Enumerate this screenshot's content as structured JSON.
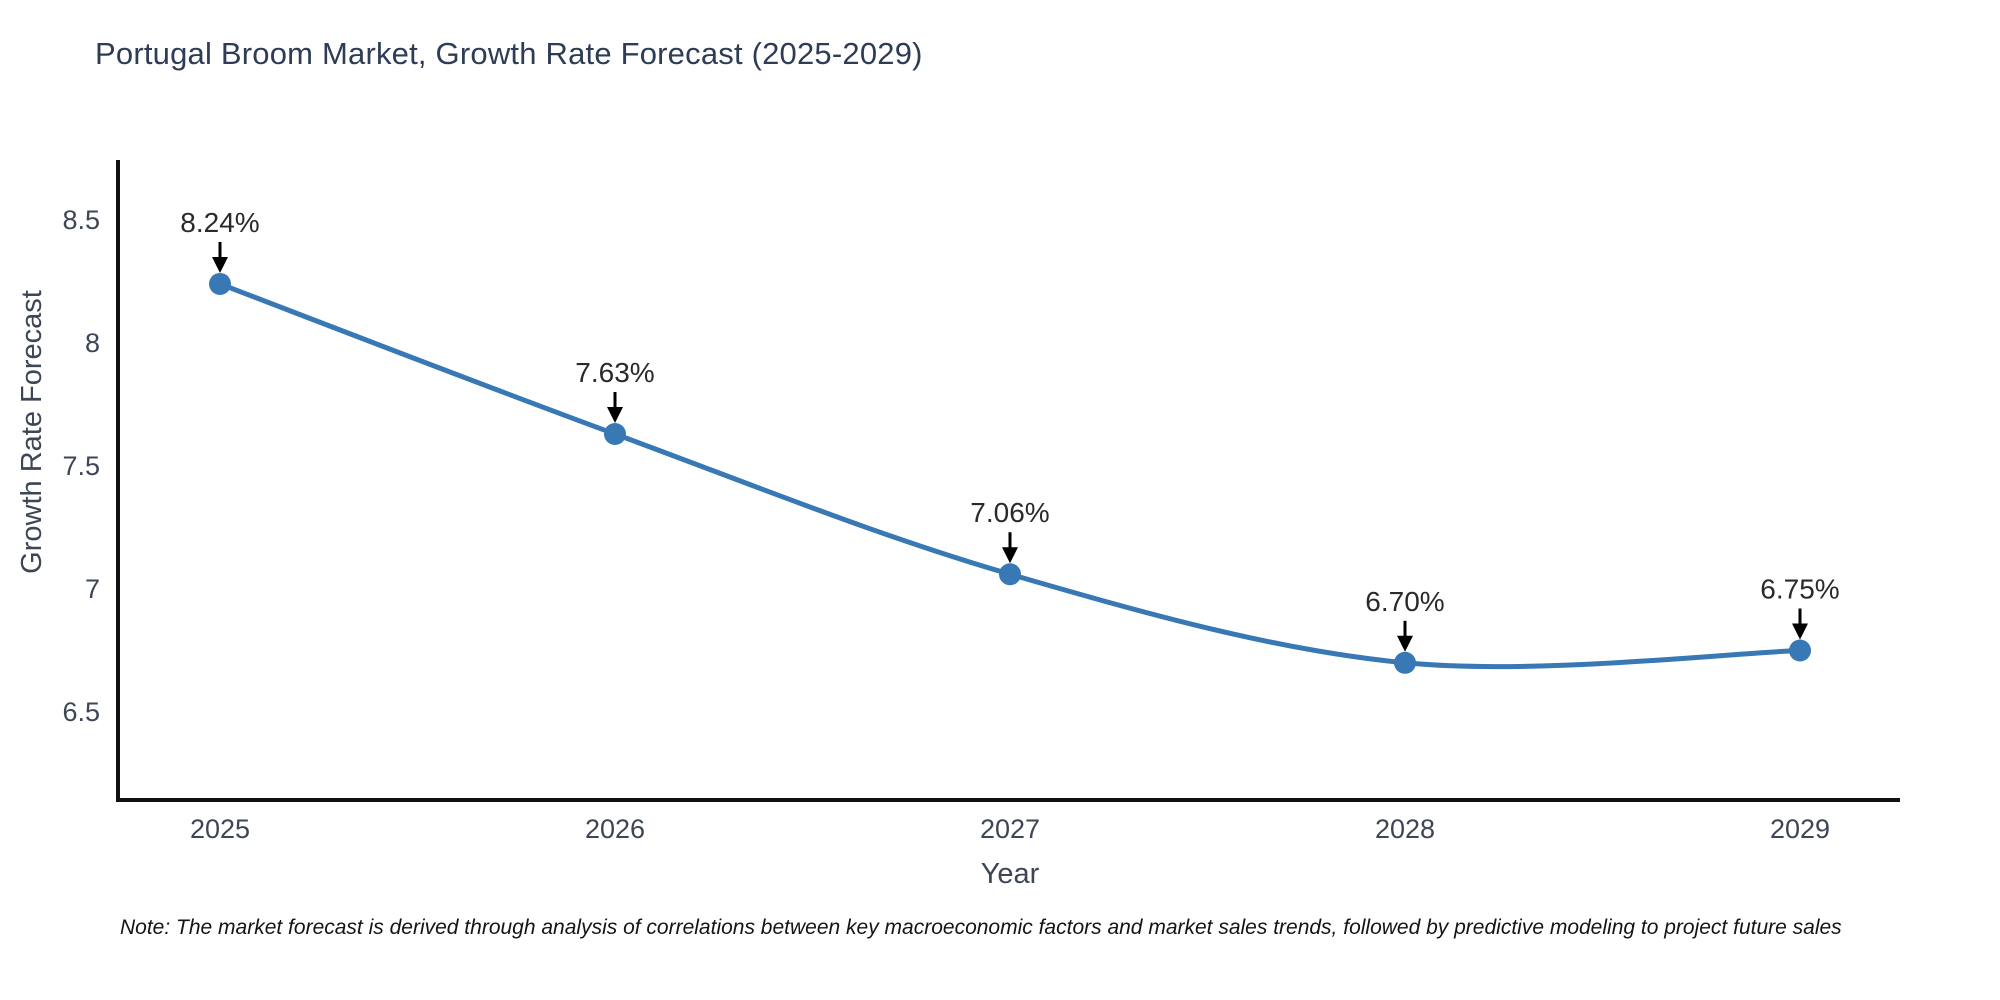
{
  "header": {
    "title": "Portugal Broom Market, Growth Rate Forecast (2025-2029)"
  },
  "chart_data": {
    "type": "line",
    "title": "Portugal Broom Market, Growth Rate Forecast (2025-2029)",
    "xlabel": "Year",
    "ylabel": "Growth Rate Forecast",
    "x": [
      2025,
      2026,
      2027,
      2028,
      2029
    ],
    "y": [
      8.24,
      7.63,
      7.06,
      6.7,
      6.75
    ],
    "point_labels": [
      "8.24%",
      "7.63%",
      "7.06%",
      "6.70%",
      "6.75%"
    ],
    "y_ticks": [
      8.5,
      8,
      7.5,
      7,
      6.5
    ],
    "ylim": [
      6.14,
      8.74
    ],
    "grid": false,
    "legend_position": "none",
    "smooth": true,
    "line_color": "#3878b4",
    "marker_color": "#3878b4",
    "annotation_arrow_color": "#000000",
    "annotation_text_color": "#2a2a2a",
    "axis_spine_color": "#111111",
    "tick_label_color": "#3d4656"
  },
  "footer": {
    "note": "Note: The market forecast is derived through analysis of correlations between key macroeconomic factors and market sales trends, followed by predictive modeling to project future sales"
  }
}
